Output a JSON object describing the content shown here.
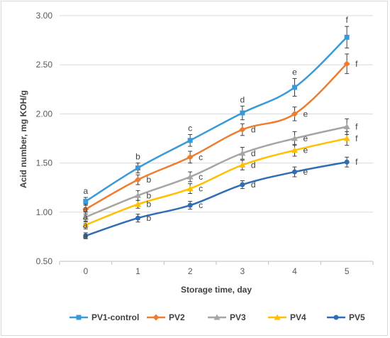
{
  "chart_data": {
    "type": "line",
    "xlabel": "Storage time, day",
    "ylabel": "Acid number, mg KOH/g",
    "x": [
      0,
      1,
      2,
      3,
      4,
      5
    ],
    "xticks": [
      "0",
      "1",
      "2",
      "3",
      "4",
      "5"
    ],
    "ylim": [
      0.5,
      3.0
    ],
    "yticks": [
      "0.50",
      "1.00",
      "1.50",
      "2.00",
      "2.50",
      "3.00"
    ],
    "grid": "horizontal",
    "legend_position": "bottom",
    "series": [
      {
        "name": "PV1-control",
        "color": "#3a9ad9",
        "marker": "square",
        "values": [
          1.11,
          1.45,
          1.73,
          2.01,
          2.27,
          2.78
        ],
        "errors": [
          0.04,
          0.05,
          0.06,
          0.07,
          0.09,
          0.11
        ],
        "letters": [
          "a",
          "b",
          "c",
          "d",
          "e",
          "f"
        ]
      },
      {
        "name": "PV2",
        "color": "#ed7d31",
        "marker": "diamond",
        "values": [
          1.03,
          1.33,
          1.56,
          1.84,
          2.0,
          2.51
        ],
        "errors": [
          0.05,
          0.05,
          0.06,
          0.06,
          0.07,
          0.1
        ],
        "letters": [
          "a",
          "b",
          "c",
          "d",
          "e",
          "f"
        ]
      },
      {
        "name": "PV3",
        "color": "#a5a5a5",
        "marker": "triangle",
        "values": [
          0.95,
          1.17,
          1.36,
          1.6,
          1.75,
          1.87
        ],
        "errors": [
          0.05,
          0.05,
          0.05,
          0.06,
          0.07,
          0.08
        ],
        "letters": [
          "a",
          "b",
          "c",
          "d",
          "e",
          "f"
        ]
      },
      {
        "name": "PV4",
        "color": "#ffc000",
        "marker": "triangle",
        "values": [
          0.87,
          1.08,
          1.24,
          1.48,
          1.63,
          1.75
        ],
        "errors": [
          0.04,
          0.04,
          0.05,
          0.05,
          0.06,
          0.07
        ],
        "letters": [
          "a",
          "b",
          "c",
          "d",
          "e",
          "f"
        ]
      },
      {
        "name": "PV5",
        "color": "#2f6db5",
        "marker": "circle",
        "values": [
          0.76,
          0.94,
          1.07,
          1.28,
          1.41,
          1.51
        ],
        "errors": [
          0.03,
          0.04,
          0.04,
          0.04,
          0.05,
          0.05
        ],
        "letters": [
          "a",
          "b",
          "c",
          "d",
          "e",
          "f"
        ]
      }
    ]
  }
}
